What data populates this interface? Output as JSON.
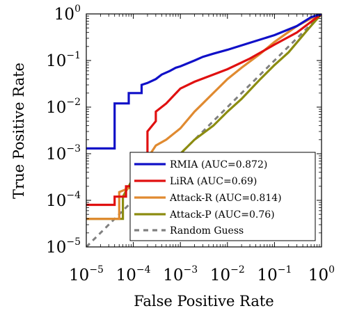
{
  "chart_data": {
    "type": "line",
    "title": "",
    "xlabel": "False Positive Rate",
    "ylabel": "True Positive Rate",
    "xscale": "log",
    "yscale": "log",
    "xlim": [
      1e-05,
      1
    ],
    "ylim": [
      1e-05,
      1
    ],
    "xticks": [
      {
        "base": "10",
        "exp": "−5"
      },
      {
        "base": "10",
        "exp": "−4"
      },
      {
        "base": "10",
        "exp": "−3"
      },
      {
        "base": "10",
        "exp": "−2"
      },
      {
        "base": "10",
        "exp": "−1"
      },
      {
        "base": "10",
        "exp": "0"
      }
    ],
    "yticks": [
      {
        "base": "10",
        "exp": "−5"
      },
      {
        "base": "10",
        "exp": "−4"
      },
      {
        "base": "10",
        "exp": "−3"
      },
      {
        "base": "10",
        "exp": "−2"
      },
      {
        "base": "10",
        "exp": "−1"
      },
      {
        "base": "10",
        "exp": "0"
      }
    ],
    "grid": false,
    "legend_position": "bottom-right",
    "series": [
      {
        "name": "RMIA (AUC=0.872)",
        "color": "#1010c8",
        "x": [
          1e-05,
          4e-05,
          4e-05,
          8e-05,
          8e-05,
          0.00015,
          0.00015,
          0.0002,
          0.0003,
          0.0004,
          0.0006,
          0.0008,
          0.001,
          0.002,
          0.003,
          0.005,
          0.01,
          0.03,
          0.1,
          0.3,
          0.6,
          1.0
        ],
        "y": [
          0.0013,
          0.0013,
          0.012,
          0.012,
          0.02,
          0.02,
          0.03,
          0.033,
          0.04,
          0.05,
          0.06,
          0.07,
          0.075,
          0.1,
          0.12,
          0.14,
          0.17,
          0.24,
          0.35,
          0.55,
          0.85,
          1.0
        ]
      },
      {
        "name": "LiRA (AUC=0.69)",
        "color": "#e01010",
        "x": [
          1e-05,
          4e-05,
          4e-05,
          7e-05,
          7e-05,
          0.00015,
          0.00015,
          0.0002,
          0.0002,
          0.0003,
          0.0003,
          0.0005,
          0.001,
          0.002,
          0.005,
          0.01,
          0.03,
          0.1,
          0.3,
          1.0
        ],
        "y": [
          8e-05,
          8e-05,
          0.00012,
          0.00012,
          0.0002,
          0.0002,
          0.0005,
          0.0005,
          0.003,
          0.005,
          0.008,
          0.012,
          0.025,
          0.035,
          0.05,
          0.065,
          0.11,
          0.22,
          0.4,
          1.0
        ]
      },
      {
        "name": "Attack-R (AUC=0.814)",
        "color": "#e08a30",
        "x": [
          1e-05,
          5e-05,
          5e-05,
          0.0001,
          0.00015,
          0.0002,
          0.0003,
          0.0005,
          0.001,
          0.002,
          0.003,
          0.005,
          0.01,
          0.02,
          0.05,
          0.1,
          0.3,
          0.6,
          1.0
        ],
        "y": [
          4e-05,
          4e-05,
          0.00015,
          0.0002,
          0.0004,
          0.0008,
          0.0015,
          0.002,
          0.0035,
          0.008,
          0.012,
          0.02,
          0.04,
          0.07,
          0.14,
          0.25,
          0.55,
          0.8,
          1.0
        ]
      },
      {
        "name": "Attack-P (AUC=0.76)",
        "color": "#8c8c10",
        "x": [
          1e-05,
          6e-05,
          6e-05,
          0.0001,
          0.0002,
          0.0005,
          0.001,
          0.002,
          0.005,
          0.01,
          0.02,
          0.05,
          0.1,
          0.2,
          0.5,
          1.0
        ],
        "y": [
          4e-05,
          4e-05,
          0.00012,
          0.0003,
          0.0003,
          0.0006,
          0.001,
          0.002,
          0.004,
          0.008,
          0.015,
          0.04,
          0.08,
          0.15,
          0.45,
          1.0
        ]
      },
      {
        "name": "Random Guess",
        "color": "#808080",
        "dashed": true,
        "x": [
          1e-05,
          1.0
        ],
        "y": [
          1e-05,
          1.0
        ]
      }
    ]
  }
}
